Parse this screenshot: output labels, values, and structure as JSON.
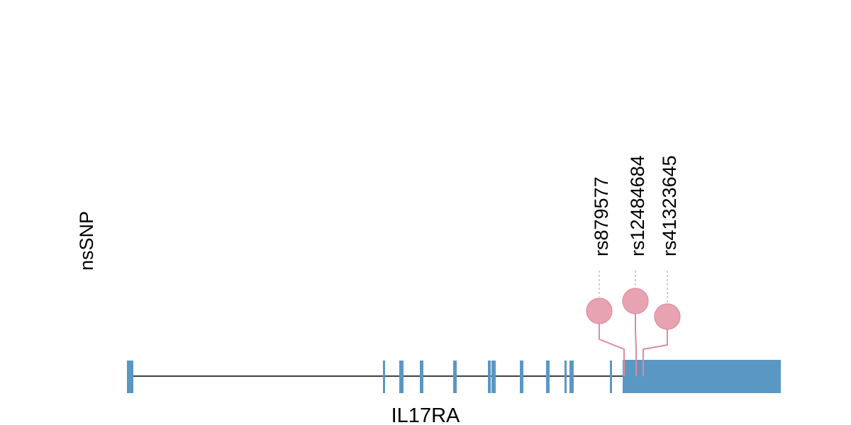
{
  "track_label": "nsSNP",
  "gene": {
    "name": "IL17RA"
  },
  "colors": {
    "exon": "#5b97c3",
    "intron": "#000000",
    "snp_fill": "#e8a3b2",
    "snp_stroke": "#e08aa0",
    "snp_guide": "#bbbbbb"
  },
  "snps": [
    {
      "id": "rs879577"
    },
    {
      "id": "rs12484684"
    },
    {
      "id": "rs41323645"
    }
  ]
}
